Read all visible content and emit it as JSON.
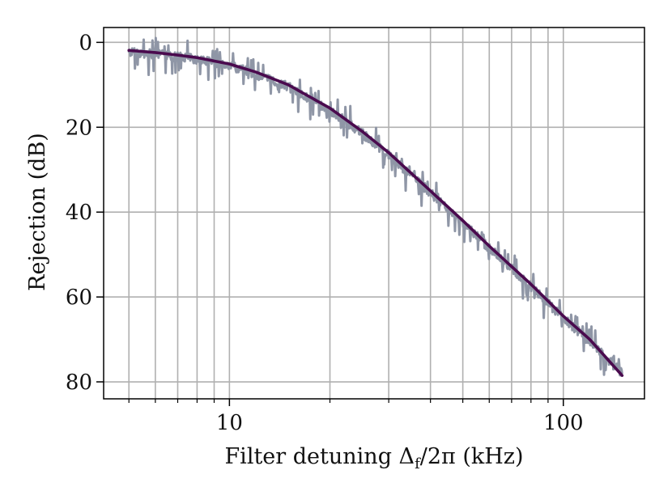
{
  "chart_data": {
    "type": "line",
    "xlabel": "Filter detuning Δ",
    "xlabel_sub": "f",
    "xlabel_tail": "/2π (kHz)",
    "ylabel": "Rejection (dB)",
    "x_scale": "log",
    "xlim": [
      4.2,
      175
    ],
    "ylim": [
      84,
      -3.5
    ],
    "y_inverted": true,
    "x_major_ticks": [
      10,
      100
    ],
    "x_tick_labels": [
      "10",
      "100"
    ],
    "x_minor_ticks": [
      5,
      6,
      7,
      8,
      9,
      20,
      30,
      40,
      50,
      60,
      70,
      80,
      90
    ],
    "y_ticks": [
      0,
      20,
      40,
      60,
      80
    ],
    "y_tick_labels": [
      "0",
      "20",
      "40",
      "60",
      "80"
    ],
    "grid": true,
    "legend": "none",
    "colors": {
      "measured": "#8f96a6",
      "fit": "#4a0a4e",
      "grid": "#b0b0b0"
    },
    "series": [
      {
        "style": "noisy measurement",
        "x": [
          5,
          6,
          7,
          8,
          10,
          12,
          15,
          20,
          25,
          30,
          40,
          50,
          60,
          80,
          100,
          120,
          150
        ],
        "y": [
          2.3,
          2.8,
          3.4,
          4.0,
          5.5,
          7.5,
          10.5,
          16.0,
          21.5,
          26.5,
          35.5,
          42.5,
          48.5,
          57.5,
          65.0,
          70.5,
          78.0
        ]
      },
      {
        "style": "fit",
        "x": [
          5,
          6,
          7,
          8,
          10,
          12,
          15,
          20,
          25,
          30,
          40,
          50,
          60,
          80,
          100,
          120,
          150
        ],
        "y": [
          1.9,
          2.4,
          3.0,
          3.6,
          5.1,
          7.0,
          10.0,
          15.5,
          21.0,
          26.0,
          35.0,
          42.0,
          48.0,
          57.0,
          64.5,
          70.0,
          78.5
        ]
      }
    ]
  }
}
